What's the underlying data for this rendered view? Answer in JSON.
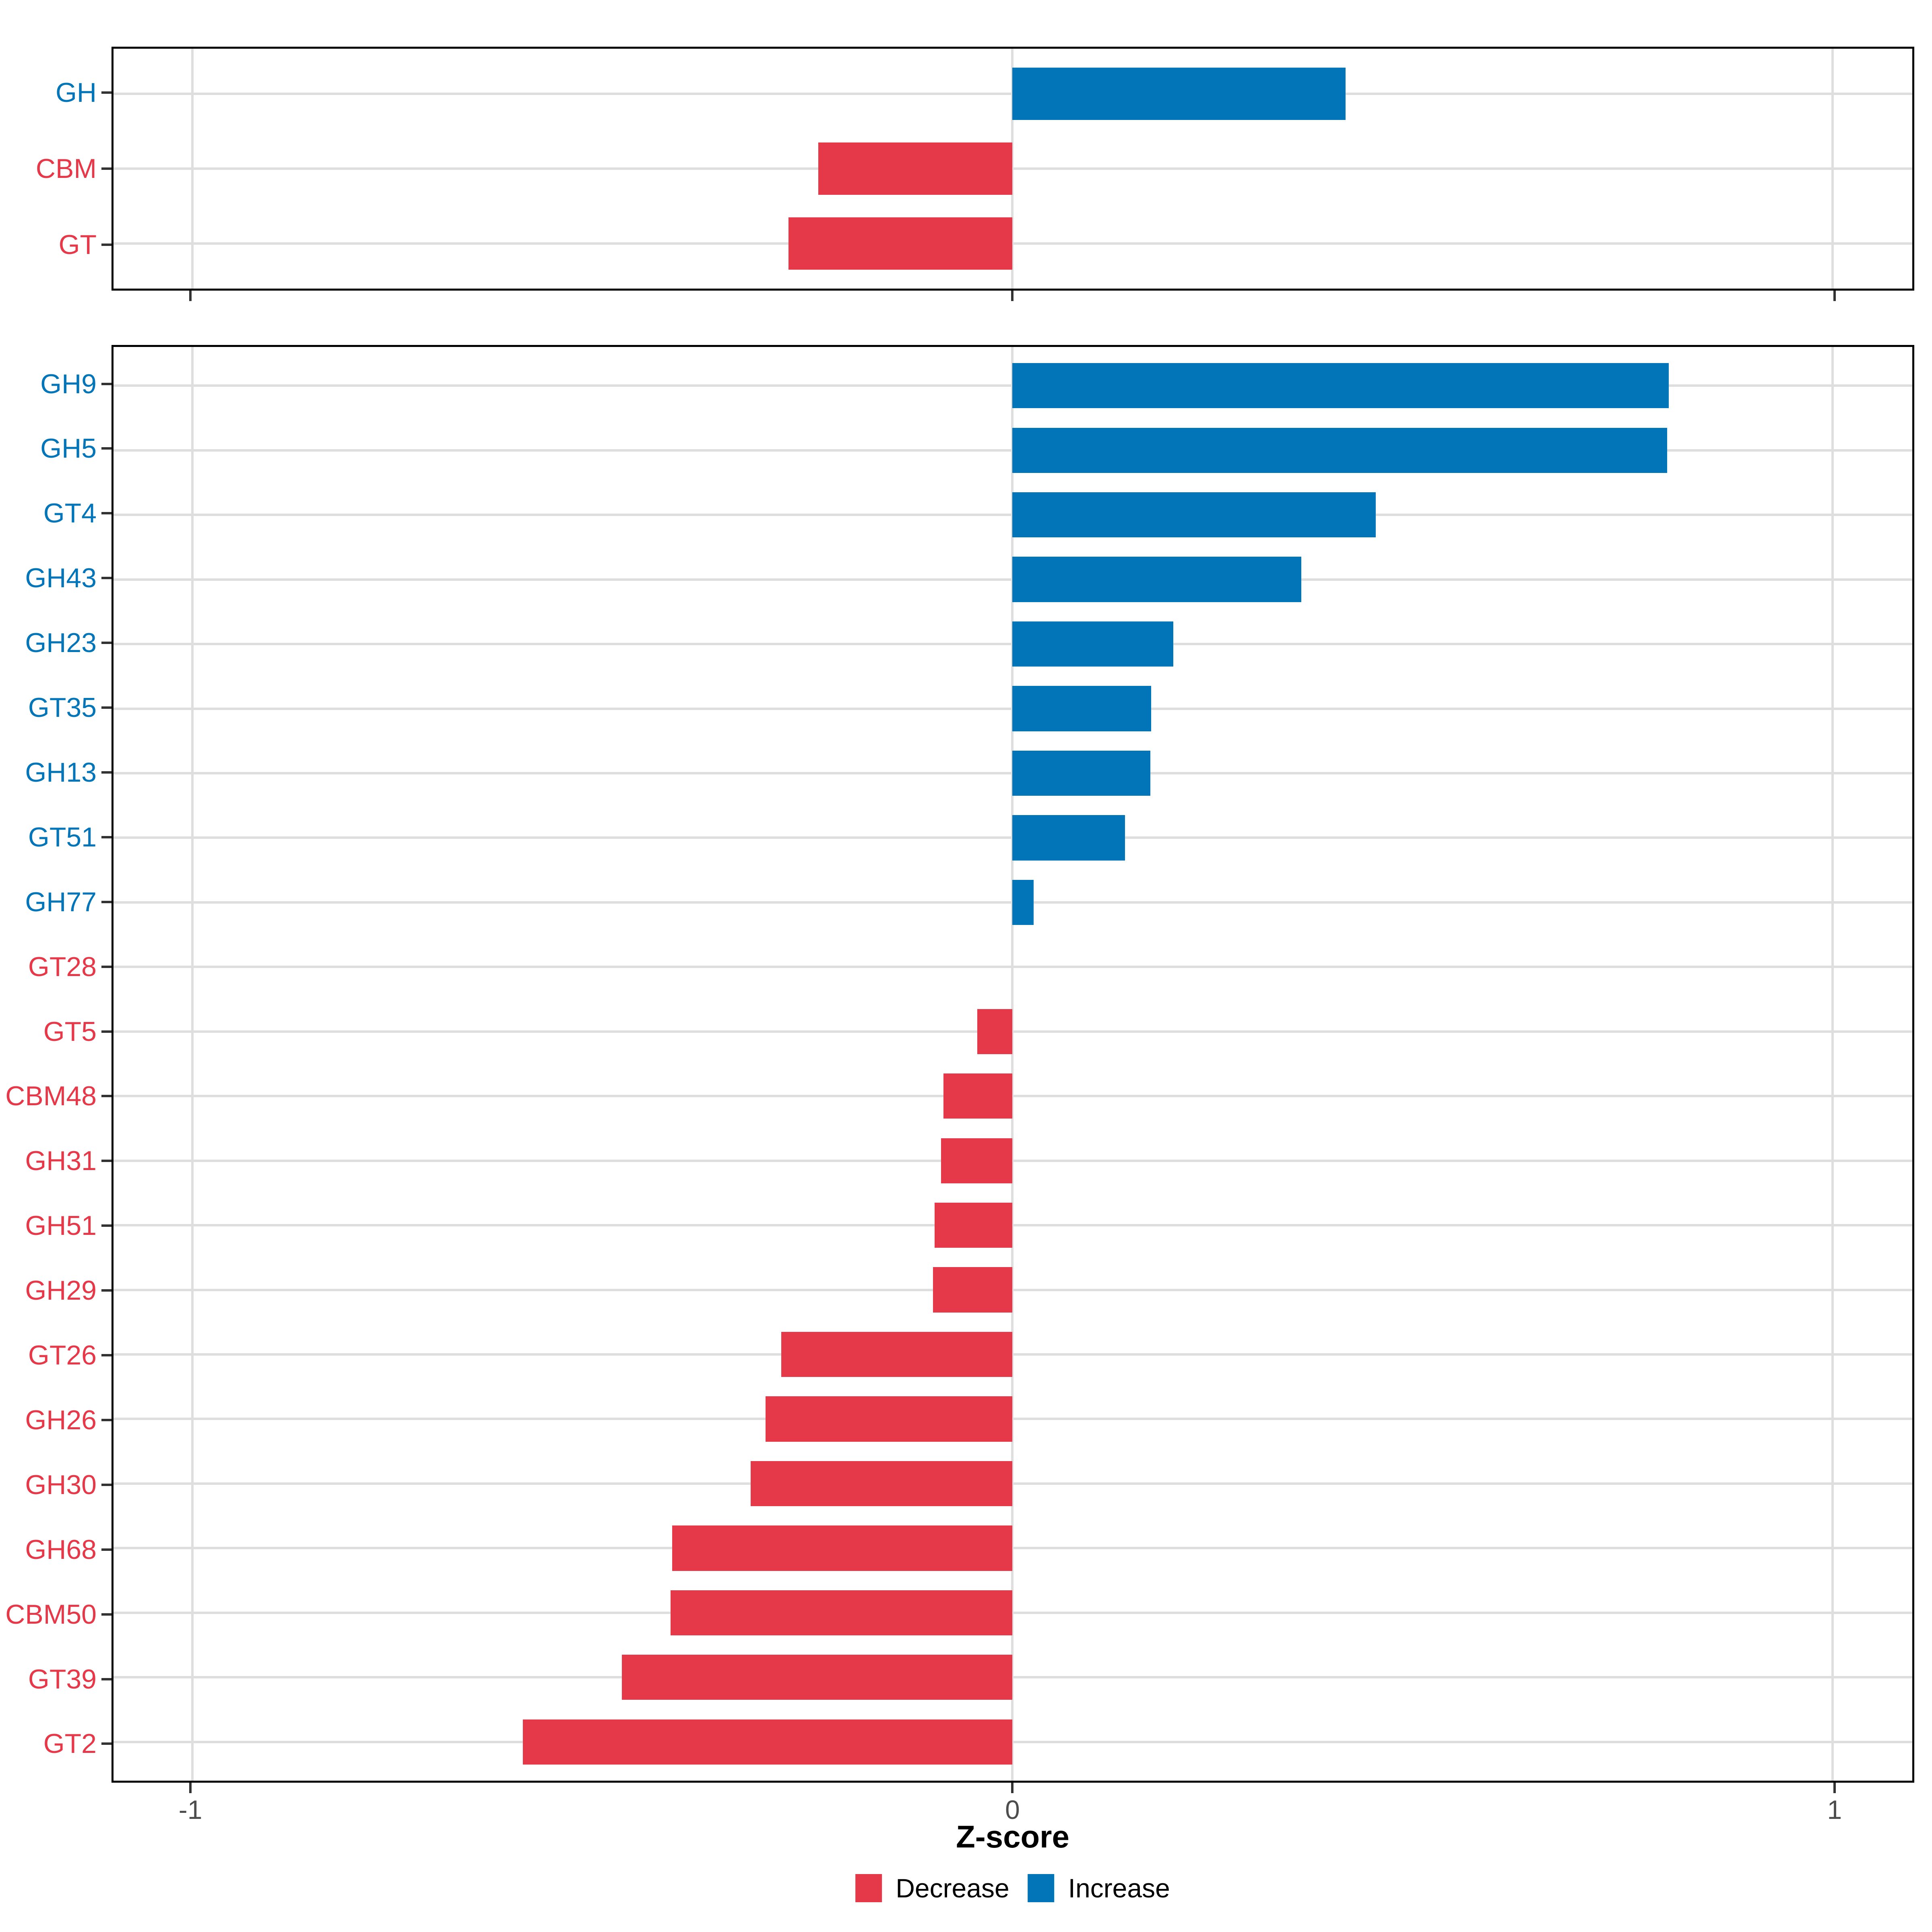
{
  "axis": {
    "xlabel": "Z-score",
    "ticks": [
      -1,
      0,
      1
    ],
    "tick_labels": [
      "-1",
      "0",
      "1"
    ],
    "xmin": -1.096,
    "xmax": 1.097,
    "grid": "major gridlines at ticks and at each category row"
  },
  "colors": {
    "decrease": "#E5394A",
    "increase": "#0274B8",
    "grid": "#DEDEDE",
    "tick": "#333333",
    "axis_text": "#4D4D4D",
    "panel_border": "#000000",
    "background": "#FFFFFF"
  },
  "legend": {
    "items": [
      {
        "label": "Decrease",
        "color_key": "decrease"
      },
      {
        "label": "Increase",
        "color_key": "increase"
      }
    ]
  },
  "chart_data": [
    {
      "id": "cazy-class",
      "type": "bar",
      "orientation": "horizontal",
      "bar_width_frac": 0.7,
      "categories": [
        "GH",
        "CBM",
        "GT"
      ],
      "values": [
        0.406,
        -0.237,
        -0.273
      ],
      "directions": [
        "increase",
        "decrease",
        "decrease"
      ]
    },
    {
      "id": "cazy-family",
      "type": "bar",
      "orientation": "horizontal",
      "bar_width_frac": 0.7,
      "categories": [
        "GH9",
        "GH5",
        "GT4",
        "GH43",
        "GH23",
        "GT35",
        "GH13",
        "GT51",
        "GH77",
        "GT28",
        "GT5",
        "CBM48",
        "GH31",
        "GH51",
        "GH29",
        "GT26",
        "GH26",
        "GH30",
        "GH68",
        "CBM50",
        "GT39",
        "GT2"
      ],
      "values": [
        0.8,
        0.798,
        0.443,
        0.352,
        0.196,
        0.169,
        0.168,
        0.137,
        0.026,
        0.0,
        -0.043,
        -0.084,
        -0.087,
        -0.095,
        -0.097,
        -0.282,
        -0.301,
        -0.319,
        -0.415,
        -0.417,
        -0.476,
        -0.597
      ],
      "directions": [
        "increase",
        "increase",
        "increase",
        "increase",
        "increase",
        "increase",
        "increase",
        "increase",
        "increase",
        "decrease",
        "decrease",
        "decrease",
        "decrease",
        "decrease",
        "decrease",
        "decrease",
        "decrease",
        "decrease",
        "decrease",
        "decrease",
        "decrease",
        "decrease"
      ]
    }
  ]
}
